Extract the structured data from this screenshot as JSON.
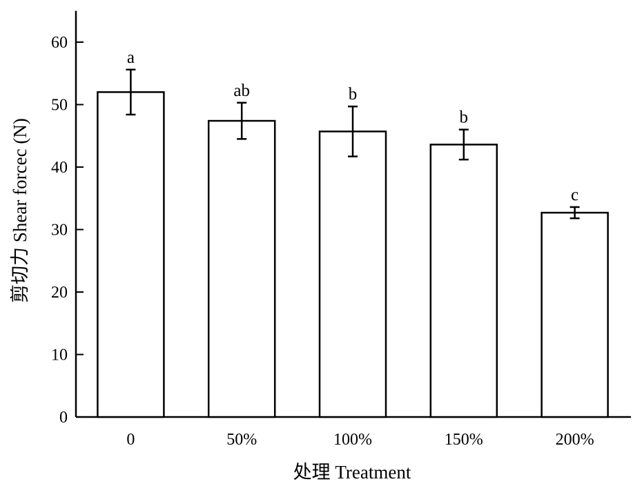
{
  "chart_data": {
    "type": "bar",
    "categories": [
      "0",
      "50%",
      "100%",
      "150%",
      "200%"
    ],
    "values": [
      52.0,
      47.4,
      45.7,
      43.6,
      32.7
    ],
    "error": [
      3.6,
      2.9,
      4.0,
      2.4,
      0.9
    ],
    "significance": [
      "a",
      "ab",
      "b",
      "b",
      "c"
    ],
    "xlabel": "处理 Treatment",
    "ylabel": "剪切力 Shear forcec (N)",
    "ylim": [
      0,
      65
    ],
    "yticks": [
      0,
      10,
      20,
      30,
      40,
      50,
      60
    ],
    "grid": false,
    "colors": {
      "bar_fill": "#ffffff",
      "stroke": "#000000"
    }
  }
}
